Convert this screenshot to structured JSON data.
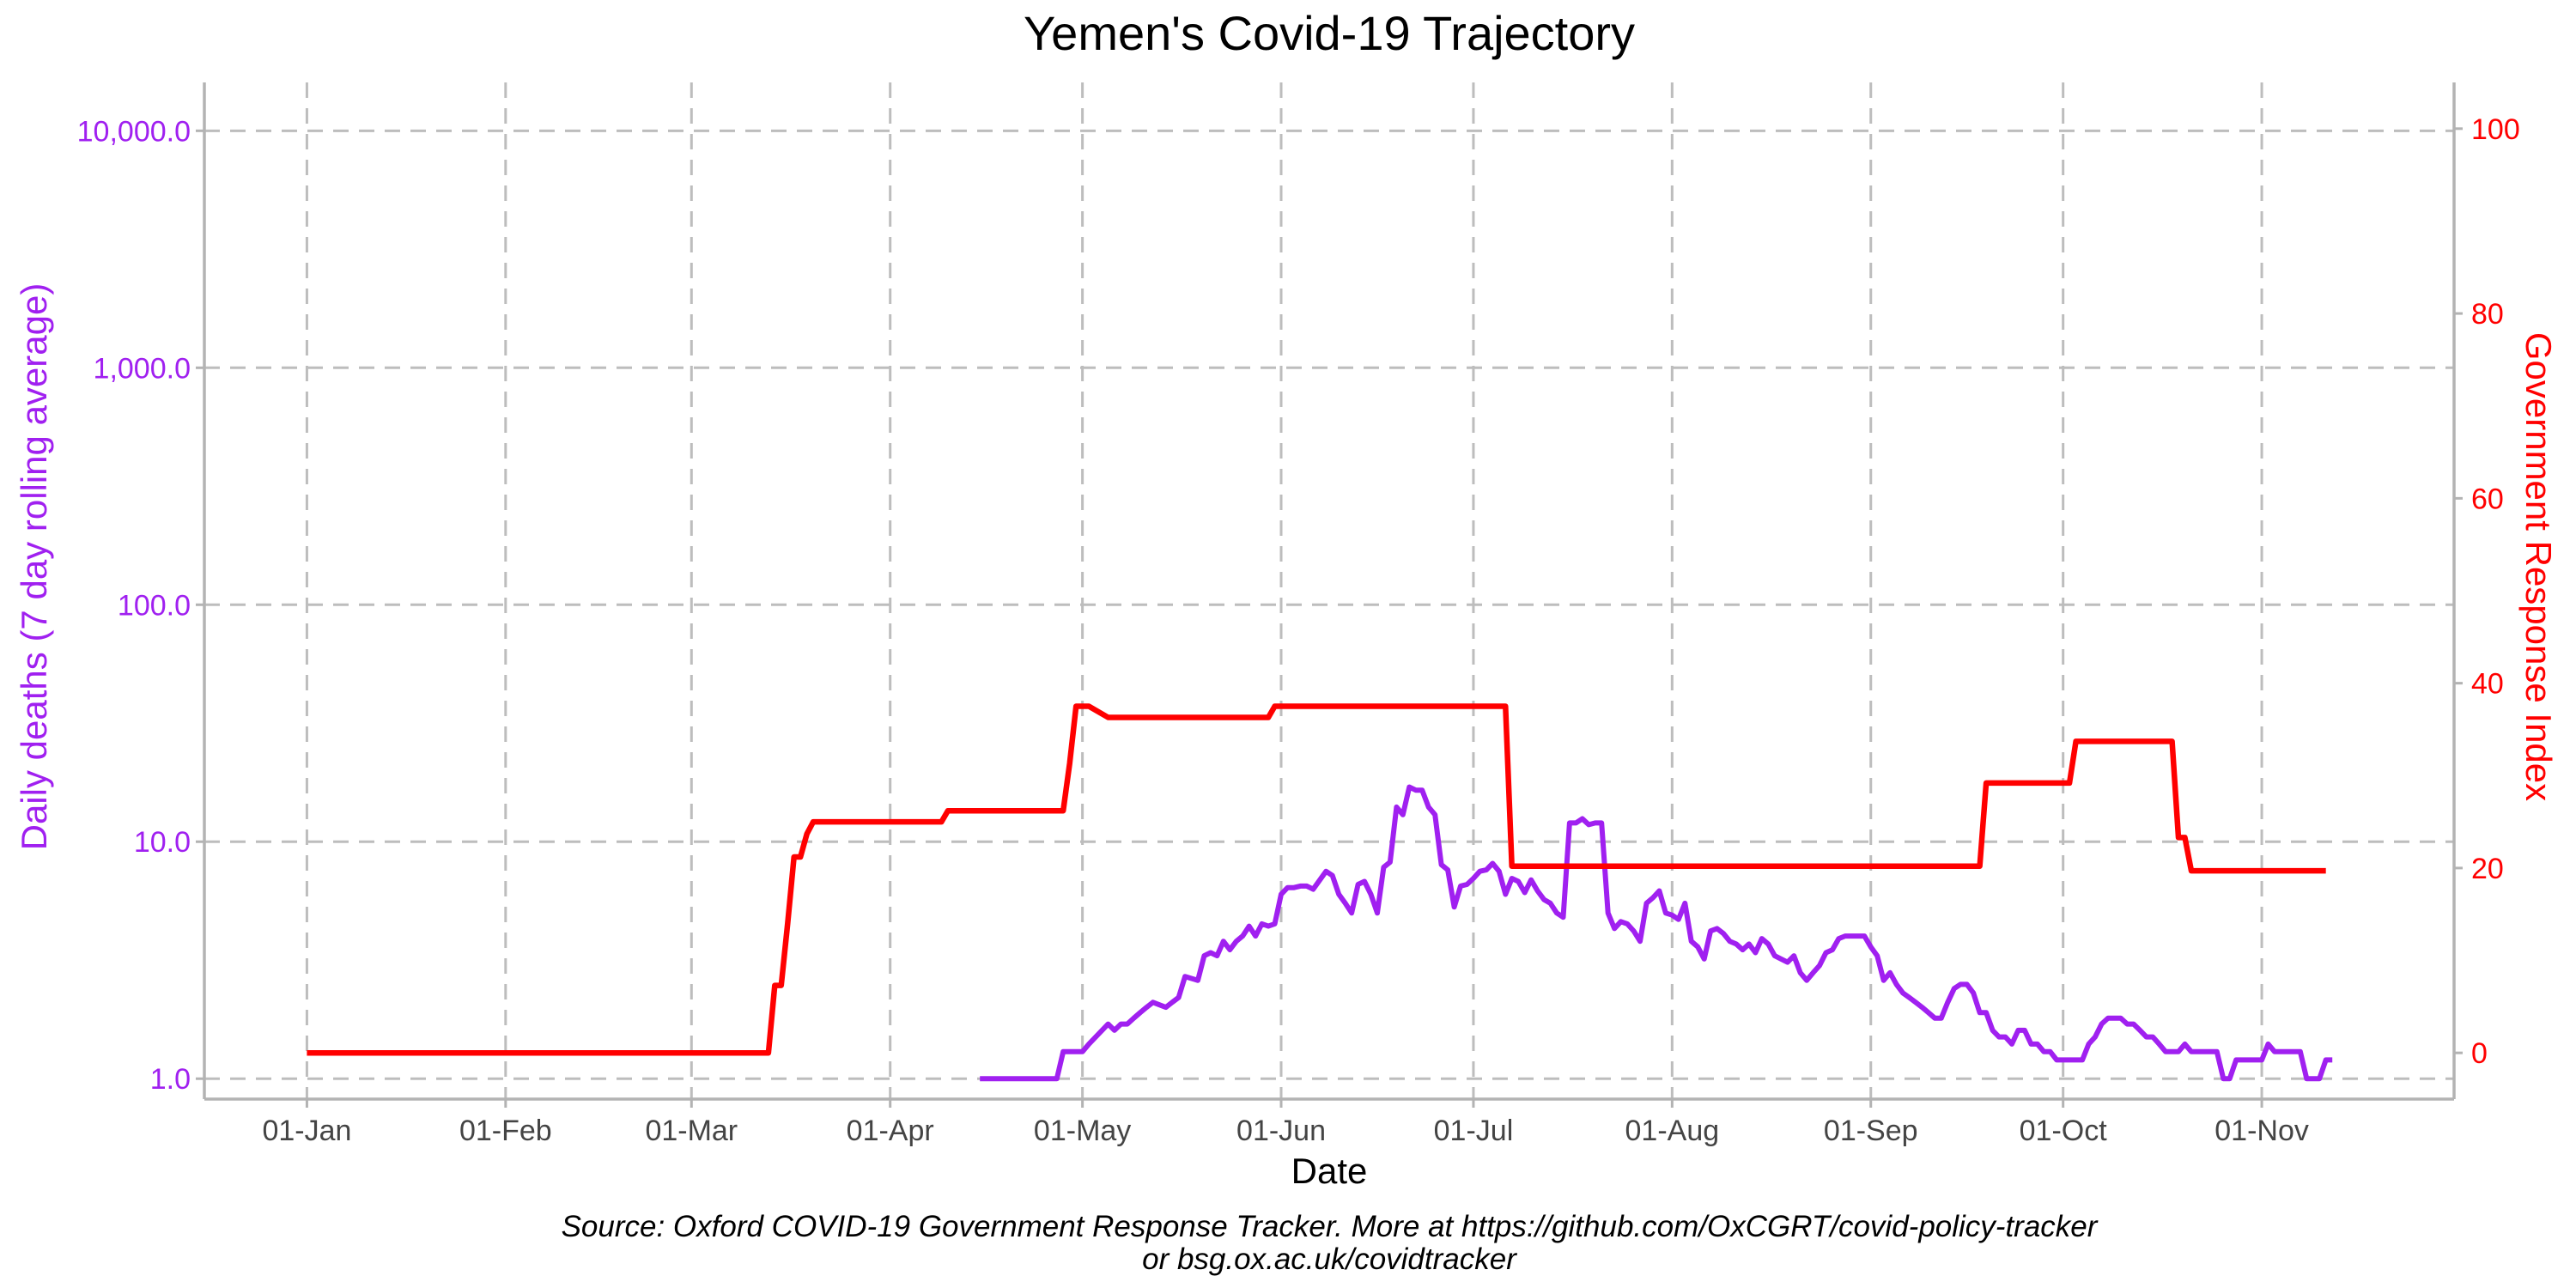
{
  "chart_data": {
    "type": "line",
    "title": "Yemen's Covid-19 Trajectory",
    "xlabel": "Date",
    "ylabel_left": "Daily deaths (7 day rolling average)",
    "ylabel_right": "Government Response Index",
    "caption_line1": "Source: Oxford COVID-19 Government Response Tracker. More at https://github.com/OxCGRT/covid-policy-tracker",
    "caption_line2": "or bsg.ox.ac.uk/covidtracker",
    "x_ticks": [
      "01-Jan",
      "01-Feb",
      "01-Mar",
      "01-Apr",
      "01-May",
      "01-Jun",
      "01-Jul",
      "01-Aug",
      "01-Sep",
      "01-Oct",
      "01-Nov"
    ],
    "x_tick_days": [
      1,
      32,
      61,
      92,
      122,
      153,
      183,
      214,
      245,
      275,
      306
    ],
    "xlim": [
      -15,
      336
    ],
    "left_axis": {
      "scale": "log10",
      "ticks": [
        "1.0",
        "10.0",
        "100.0",
        "1,000.0",
        "10,000.0"
      ],
      "tick_values": [
        1,
        10,
        100,
        1000,
        10000
      ],
      "lim": [
        0.82,
        16000
      ],
      "color": "#a020f0"
    },
    "right_axis": {
      "scale": "linear",
      "ticks": [
        "0",
        "20",
        "40",
        "60",
        "80",
        "100"
      ],
      "tick_values": [
        0,
        20,
        40,
        60,
        80,
        100
      ],
      "lim": [
        -5,
        105
      ],
      "color": "#ff0000"
    },
    "grid": true,
    "series": [
      {
        "axis": "left",
        "color": "#a020f0",
        "x": [
          106,
          112,
          118,
          119,
          120,
          122,
          123,
          126,
          127,
          128,
          129,
          130,
          131,
          132,
          133,
          135,
          136,
          137,
          138,
          140,
          141,
          142,
          143,
          144,
          145,
          146,
          147,
          148,
          149,
          150,
          151,
          152,
          153,
          154,
          155,
          156,
          157,
          158,
          160,
          161,
          162,
          163,
          164,
          165,
          166,
          167,
          168,
          169,
          170,
          171,
          172,
          173,
          174,
          175,
          176,
          177,
          178,
          179,
          180,
          181,
          182,
          183,
          184,
          185,
          186,
          187,
          188,
          189,
          190,
          191,
          192,
          193,
          194,
          195,
          196,
          197,
          198,
          199,
          200,
          201,
          202,
          203,
          204,
          205,
          206,
          207,
          208,
          209,
          210,
          211,
          212,
          213,
          214,
          215,
          216,
          217,
          218,
          219,
          220,
          221,
          222,
          223,
          224,
          225,
          226,
          227,
          228,
          229,
          230,
          231,
          232,
          233,
          234,
          235,
          236,
          237,
          238,
          239,
          240,
          241,
          242,
          243,
          244,
          245,
          246,
          247,
          248,
          249,
          250,
          251,
          252,
          253,
          254,
          255,
          256,
          257,
          258,
          259,
          260,
          261,
          262,
          263,
          264,
          265,
          266,
          267,
          268,
          269,
          270,
          271,
          272,
          273,
          274,
          275,
          276,
          277,
          278,
          279,
          280,
          281,
          282,
          283,
          284,
          285,
          286,
          287,
          288,
          289,
          290,
          291,
          292,
          293,
          294,
          295,
          296,
          297,
          298,
          299,
          300,
          301,
          302,
          303,
          304,
          305,
          306,
          307,
          308,
          309,
          310,
          311,
          312,
          313,
          314,
          315,
          316,
          317
        ],
        "y": [
          1.0,
          1.0,
          1.0,
          1.3,
          1.3,
          1.3,
          1.4,
          1.7,
          1.6,
          1.7,
          1.7,
          1.8,
          1.9,
          2.0,
          2.1,
          2.0,
          2.1,
          2.2,
          2.7,
          2.6,
          3.3,
          3.4,
          3.3,
          3.8,
          3.5,
          3.8,
          4.0,
          4.4,
          4.0,
          4.5,
          4.4,
          4.5,
          6.0,
          6.4,
          6.4,
          6.5,
          6.5,
          6.3,
          7.5,
          7.2,
          6.0,
          5.5,
          5.0,
          6.6,
          6.8,
          6.0,
          5.0,
          7.8,
          8.2,
          14.0,
          13.0,
          17.0,
          16.5,
          16.5,
          14.0,
          13.0,
          8.0,
          7.6,
          5.3,
          6.5,
          6.6,
          7.0,
          7.5,
          7.6,
          8.1,
          7.5,
          6.0,
          7.0,
          6.8,
          6.1,
          6.9,
          6.2,
          5.7,
          5.5,
          5.0,
          4.8,
          12.0,
          12.0,
          12.5,
          11.8,
          12.0,
          12.0,
          5.0,
          4.3,
          4.6,
          4.5,
          4.2,
          3.8,
          5.5,
          5.8,
          6.2,
          5.0,
          4.9,
          4.7,
          5.5,
          3.8,
          3.6,
          3.2,
          4.2,
          4.3,
          4.1,
          3.8,
          3.7,
          3.5,
          3.7,
          3.4,
          3.9,
          3.7,
          3.3,
          3.2,
          3.1,
          3.3,
          2.8,
          2.6,
          2.8,
          3.0,
          3.4,
          3.5,
          3.9,
          4.0,
          4.0,
          4.0,
          4.0,
          3.6,
          3.3,
          2.6,
          2.8,
          2.5,
          2.3,
          2.2,
          2.1,
          2.0,
          1.9,
          1.8,
          1.8,
          2.1,
          2.4,
          2.5,
          2.5,
          2.3,
          1.9,
          1.9,
          1.6,
          1.5,
          1.5,
          1.4,
          1.6,
          1.6,
          1.4,
          1.4,
          1.3,
          1.3,
          1.2,
          1.2,
          1.2,
          1.2,
          1.2,
          1.4,
          1.5,
          1.7,
          1.8,
          1.8,
          1.8,
          1.7,
          1.7,
          1.6,
          1.5,
          1.5,
          1.4,
          1.3,
          1.3,
          1.3,
          1.4,
          1.3,
          1.3,
          1.3,
          1.3,
          1.3,
          1.0,
          1.0,
          1.2,
          1.2,
          1.2,
          1.2,
          1.2,
          1.4,
          1.3,
          1.3,
          1.3,
          1.3,
          1.3,
          1.0,
          1.0,
          1.0,
          1.2,
          1.2
        ]
      },
      {
        "axis": "right",
        "color": "#ff0000",
        "x": [
          1,
          73,
          74,
          75,
          76,
          77,
          78,
          79,
          80,
          81,
          82,
          100,
          101,
          119,
          120,
          121,
          122,
          123,
          126,
          127,
          151,
          152,
          180,
          181,
          182,
          183,
          188,
          189,
          190,
          232,
          233,
          262,
          263,
          264,
          265,
          275,
          276,
          277,
          278,
          292,
          293,
          294,
          295,
          296,
          316
        ],
        "y": [
          0,
          0,
          7.3,
          7.3,
          14.0,
          21.2,
          21.2,
          23.7,
          25.0,
          25.0,
          25.0,
          25.0,
          26.2,
          26.2,
          31.3,
          37.5,
          37.5,
          37.5,
          36.3,
          36.3,
          36.3,
          37.5,
          37.5,
          37.5,
          37.5,
          37.5,
          37.5,
          20.2,
          20.2,
          20.2,
          20.2,
          20.2,
          29.2,
          29.2,
          29.2,
          29.2,
          29.2,
          33.7,
          33.7,
          33.7,
          23.3,
          23.3,
          19.7,
          19.7,
          19.7
        ]
      }
    ]
  }
}
